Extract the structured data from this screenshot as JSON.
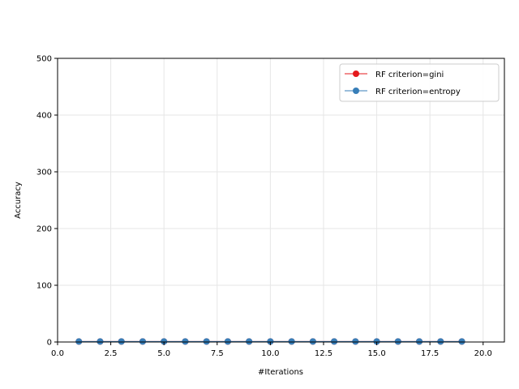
{
  "chart_data": {
    "type": "line",
    "title": "",
    "xlabel": "#Iterations",
    "ylabel": "Accuracy",
    "xlim": [
      0,
      21
    ],
    "ylim": [
      0,
      500
    ],
    "xticks": [
      0,
      2.5,
      5,
      7.5,
      10,
      12.5,
      15,
      17.5,
      20
    ],
    "xtick_labels": [
      "0.0",
      "2.5",
      "5.0",
      "7.5",
      "10.0",
      "12.5",
      "15.0",
      "17.5",
      "20.0"
    ],
    "yticks": [
      0,
      100,
      200,
      300,
      400,
      500
    ],
    "ytick_labels": [
      "0",
      "100",
      "200",
      "300",
      "400",
      "500"
    ],
    "grid": true,
    "legend_position": "top-right",
    "x": [
      1,
      2,
      3,
      4,
      5,
      6,
      7,
      8,
      9,
      10,
      11,
      12,
      13,
      14,
      15,
      16,
      17,
      18,
      19
    ],
    "series": [
      {
        "name": "RF criterion=gini",
        "color": "#e41a1c",
        "marker": "circle",
        "values": [
          0.86,
          0.87,
          0.88,
          0.88,
          0.88,
          0.89,
          0.89,
          0.89,
          0.89,
          0.89,
          0.89,
          0.89,
          0.89,
          0.89,
          0.89,
          0.89,
          0.89,
          0.89,
          0.89
        ]
      },
      {
        "name": "RF criterion=entropy",
        "color": "#377eb8",
        "marker": "circle",
        "values": [
          0.86,
          0.87,
          0.88,
          0.88,
          0.88,
          0.89,
          0.89,
          0.89,
          0.89,
          0.89,
          0.89,
          0.89,
          0.89,
          0.89,
          0.89,
          0.89,
          0.89,
          0.89,
          0.89
        ]
      }
    ]
  }
}
